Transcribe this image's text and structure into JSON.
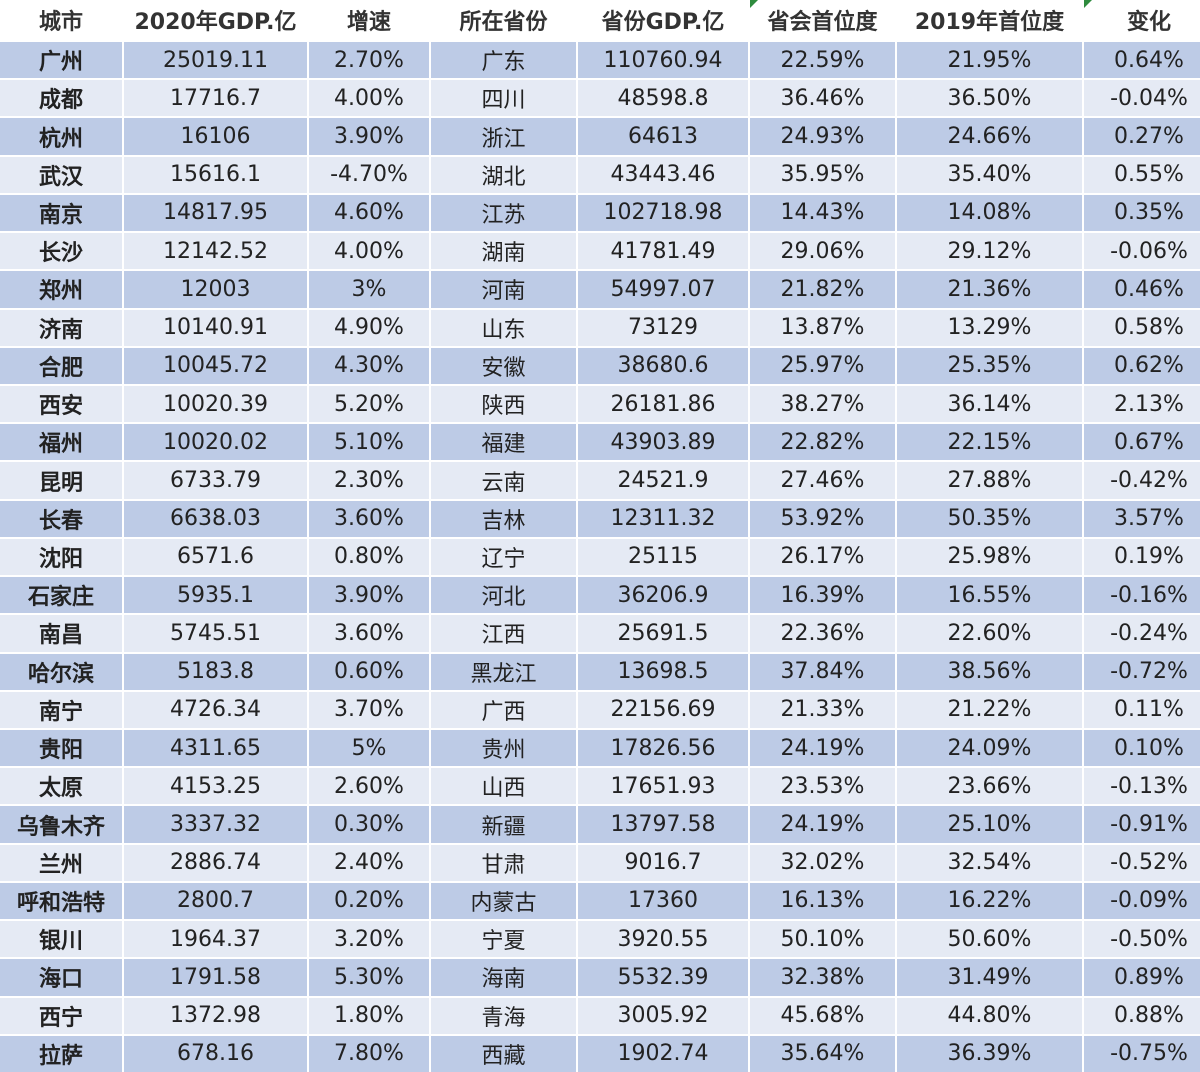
{
  "table": {
    "header": [
      "城市",
      "2020年GDP.亿",
      "增速",
      "所在省份",
      "省份GDP.亿",
      "省会首位度",
      "2019年首位度",
      "变化"
    ],
    "rows": [
      [
        "广州",
        "25019.11",
        "2.70%",
        "广东",
        "110760.94",
        "22.59%",
        "21.95%",
        "0.64%"
      ],
      [
        "成都",
        "17716.7",
        "4.00%",
        "四川",
        "48598.8",
        "36.46%",
        "36.50%",
        "-0.04%"
      ],
      [
        "杭州",
        "16106",
        "3.90%",
        "浙江",
        "64613",
        "24.93%",
        "24.66%",
        "0.27%"
      ],
      [
        "武汉",
        "15616.1",
        "-4.70%",
        "湖北",
        "43443.46",
        "35.95%",
        "35.40%",
        "0.55%"
      ],
      [
        "南京",
        "14817.95",
        "4.60%",
        "江苏",
        "102718.98",
        "14.43%",
        "14.08%",
        "0.35%"
      ],
      [
        "长沙",
        "12142.52",
        "4.00%",
        "湖南",
        "41781.49",
        "29.06%",
        "29.12%",
        "-0.06%"
      ],
      [
        "郑州",
        "12003",
        "3%",
        "河南",
        "54997.07",
        "21.82%",
        "21.36%",
        "0.46%"
      ],
      [
        "济南",
        "10140.91",
        "4.90%",
        "山东",
        "73129",
        "13.87%",
        "13.29%",
        "0.58%"
      ],
      [
        "合肥",
        "10045.72",
        "4.30%",
        "安徽",
        "38680.6",
        "25.97%",
        "25.35%",
        "0.62%"
      ],
      [
        "西安",
        "10020.39",
        "5.20%",
        "陕西",
        "26181.86",
        "38.27%",
        "36.14%",
        "2.13%"
      ],
      [
        "福州",
        "10020.02",
        "5.10%",
        "福建",
        "43903.89",
        "22.82%",
        "22.15%",
        "0.67%"
      ],
      [
        "昆明",
        "6733.79",
        "2.30%",
        "云南",
        "24521.9",
        "27.46%",
        "27.88%",
        "-0.42%"
      ],
      [
        "长春",
        "6638.03",
        "3.60%",
        "吉林",
        "12311.32",
        "53.92%",
        "50.35%",
        "3.57%"
      ],
      [
        "沈阳",
        "6571.6",
        "0.80%",
        "辽宁",
        "25115",
        "26.17%",
        "25.98%",
        "0.19%"
      ],
      [
        "石家庄",
        "5935.1",
        "3.90%",
        "河北",
        "36206.9",
        "16.39%",
        "16.55%",
        "-0.16%"
      ],
      [
        "南昌",
        "5745.51",
        "3.60%",
        "江西",
        "25691.5",
        "22.36%",
        "22.60%",
        "-0.24%"
      ],
      [
        "哈尔滨",
        "5183.8",
        "0.60%",
        "黑龙江",
        "13698.5",
        "37.84%",
        "38.56%",
        "-0.72%"
      ],
      [
        "南宁",
        "4726.34",
        "3.70%",
        "广西",
        "22156.69",
        "21.33%",
        "21.22%",
        "0.11%"
      ],
      [
        "贵阳",
        "4311.65",
        "5%",
        "贵州",
        "17826.56",
        "24.19%",
        "24.09%",
        "0.10%"
      ],
      [
        "太原",
        "4153.25",
        "2.60%",
        "山西",
        "17651.93",
        "23.53%",
        "23.66%",
        "-0.13%"
      ],
      [
        "乌鲁木齐",
        "3337.32",
        "0.30%",
        "新疆",
        "13797.58",
        "24.19%",
        "25.10%",
        "-0.91%"
      ],
      [
        "兰州",
        "2886.74",
        "2.40%",
        "甘肃",
        "9016.7",
        "32.02%",
        "32.54%",
        "-0.52%"
      ],
      [
        "呼和浩特",
        "2800.7",
        "0.20%",
        "内蒙古",
        "17360",
        "16.13%",
        "16.22%",
        "-0.09%"
      ],
      [
        "银川",
        "1964.37",
        "3.20%",
        "宁夏",
        "3920.55",
        "50.10%",
        "50.60%",
        "-0.50%"
      ],
      [
        "海口",
        "1791.58",
        "5.30%",
        "海南",
        "5532.39",
        "32.38%",
        "31.49%",
        "0.89%"
      ],
      [
        "西宁",
        "1372.98",
        "1.80%",
        "青海",
        "3005.92",
        "45.68%",
        "44.80%",
        "0.88%"
      ],
      [
        "拉萨",
        "678.16",
        "7.80%",
        "西藏",
        "1902.74",
        "35.64%",
        "36.39%",
        "-0.75%"
      ]
    ]
  }
}
